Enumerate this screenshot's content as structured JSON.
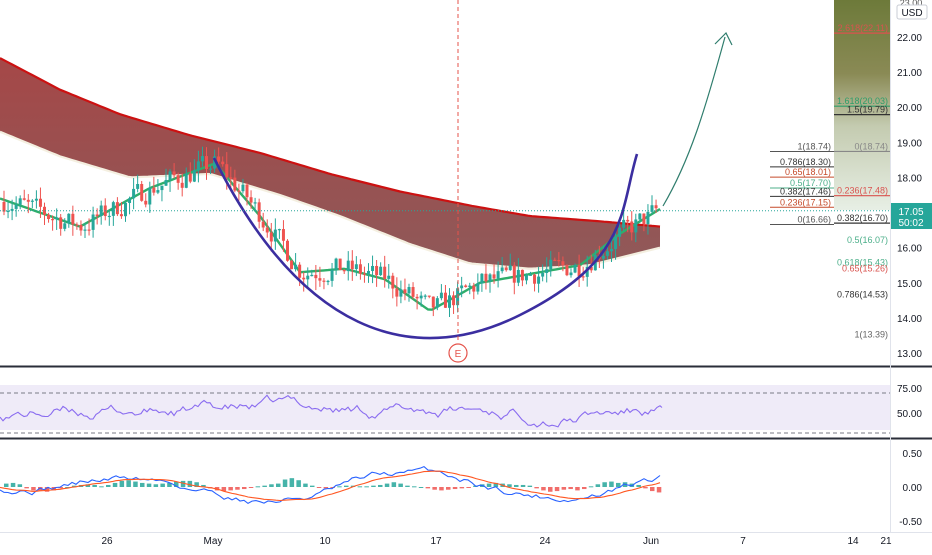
{
  "header": {
    "currency": "USD",
    "top_tick_partial": "23.00"
  },
  "price_label": {
    "value": "17.05",
    "countdown": "50:02"
  },
  "x_axis_labels": [
    "26",
    "May",
    "10",
    "17",
    "24",
    "Jun",
    "7",
    "14",
    "21"
  ],
  "event_marker": {
    "letter": "E"
  },
  "colors": {
    "up": "#26a69a",
    "down": "#ef5350",
    "ma_slow": "#cc1111",
    "ma_mid": "#f4efe0",
    "ma_fast": "#2fae6a",
    "cup": "#3b2ea0",
    "rsi": "#8a6cf0",
    "macd": "#2962ff",
    "signal": "#ff5722"
  },
  "chart_data": [
    {
      "type": "candlestick",
      "title": "",
      "ylabel": "USD",
      "ylim": [
        12.6,
        23.2
      ],
      "y_ticks": [
        "13.00",
        "14.00",
        "15.00",
        "16.00",
        "17.00",
        "18.00",
        "19.00",
        "20.00",
        "21.00",
        "22.00"
      ],
      "x_ticks": [
        "26",
        "May",
        "10",
        "17",
        "24",
        "Jun",
        "7",
        "14",
        "21"
      ],
      "last_price": 17.05,
      "moving_averages": [
        {
          "color": "red",
          "points": [
            [
              0,
              21.4
            ],
            [
              60,
              20.5
            ],
            [
              120,
              19.8
            ],
            [
              190,
              19.2
            ],
            [
              260,
              18.7
            ],
            [
              330,
              18.1
            ],
            [
              400,
              17.6
            ],
            [
              470,
              17.2
            ],
            [
              530,
              16.9
            ],
            [
              600,
              16.75
            ],
            [
              660,
              16.6
            ]
          ]
        },
        {
          "color": "cream",
          "points": [
            [
              0,
              19.3
            ],
            [
              60,
              18.6
            ],
            [
              130,
              18.0
            ],
            [
              210,
              18.1
            ],
            [
              280,
              17.5
            ],
            [
              340,
              16.9
            ],
            [
              410,
              16.1
            ],
            [
              470,
              15.55
            ],
            [
              530,
              15.4
            ],
            [
              590,
              15.5
            ],
            [
              660,
              16.0
            ]
          ]
        },
        {
          "color": "green",
          "points": [
            [
              0,
              17.4
            ],
            [
              80,
              16.6
            ],
            [
              150,
              17.7
            ],
            [
              215,
              18.4
            ],
            [
              260,
              16.9
            ],
            [
              300,
              15.3
            ],
            [
              345,
              15.4
            ],
            [
              385,
              15.1
            ],
            [
              430,
              14.2
            ],
            [
              480,
              15.0
            ],
            [
              540,
              15.3
            ],
            [
              580,
              15.5
            ],
            [
              620,
              16.4
            ],
            [
              660,
              17.1
            ]
          ]
        }
      ],
      "overlays": [
        {
          "kind": "cup-arc",
          "color": "dark-blue"
        },
        {
          "kind": "projection-arrow",
          "color": "teal"
        },
        {
          "kind": "vertical-event-line",
          "color": "red",
          "dashed": true
        }
      ],
      "fib_left": {
        "labels": [
          "1(18.74)",
          "0.786(18.30)",
          "0.65(18.01)",
          "0.5(17.70)",
          "0.382(17.46)",
          "0.236(17.15)",
          "0(16.66)"
        ],
        "values": [
          18.74,
          18.3,
          18.01,
          17.7,
          17.46,
          17.15,
          16.66
        ],
        "colors": [
          "#555555",
          "#333333",
          "#c54a2a",
          "#4caf8a",
          "#333333",
          "#c54a2a",
          "#555555"
        ]
      },
      "fib_right": {
        "labels": [
          "2.618(22.11)",
          "1.618(20.03)",
          "1.5(19.79)",
          "0(18.74)",
          "0.236(17.48)",
          "0.382(16.70)",
          "0.5(16.07)",
          "0.618(15.43)",
          "0.65(15.26)",
          "0.786(14.53)",
          "1(13.39)"
        ],
        "values": [
          22.11,
          20.03,
          19.79,
          18.74,
          17.48,
          16.7,
          16.07,
          15.43,
          15.26,
          14.53,
          13.39
        ],
        "colors": [
          "#d9534f",
          "#2e9e6a",
          "#333333",
          "#888888",
          "#d9534f",
          "#333333",
          "#4caf8a",
          "#4caf8a",
          "#d9534f",
          "#333333",
          "#666666"
        ]
      }
    },
    {
      "type": "line",
      "ylim": [
        25,
        95
      ],
      "y_ticks": [
        "75.00",
        "50.00"
      ],
      "reference_lines": [
        70,
        30
      ],
      "last_value": 55.5
    },
    {
      "type": "bar",
      "ylim": [
        -0.62,
        0.62
      ],
      "y_ticks": [
        "0.50",
        "0.00",
        "-0.50"
      ],
      "series": [
        {
          "name": "",
          "values": [
            0.05,
            0.06,
            0.04,
            -0.02,
            -0.05,
            -0.05,
            -0.07,
            -0.05,
            -0.02,
            0.0,
            0.02,
            0.03,
            0.04,
            0.03,
            0.01,
            0.03,
            0.06,
            0.09,
            0.1,
            0.08,
            0.06,
            0.05,
            0.04,
            0.05,
            0.06,
            0.08,
            0.09,
            0.09,
            0.07,
            0.03,
            -0.02,
            -0.05,
            -0.06,
            -0.05,
            -0.04,
            -0.03,
            -0.01,
            0.01,
            0.02,
            0.04,
            0.05,
            0.11,
            0.13,
            0.1,
            0.05,
            0.02,
            -0.01,
            -0.02,
            -0.01,
            0.01,
            0.02,
            0.02,
            0.01,
            0.01,
            0.02,
            0.03,
            0.05,
            0.07,
            0.05,
            0.02,
            0.01,
            0.0,
            -0.02,
            -0.04,
            -0.05,
            -0.04,
            -0.03,
            -0.02,
            -0.01,
            0.02,
            0.04,
            0.05,
            0.06,
            0.05,
            0.04,
            0.03,
            0.03,
            0.02,
            -0.02,
            -0.05,
            -0.07,
            -0.06,
            -0.04,
            -0.03,
            -0.05,
            -0.03,
            0.01,
            0.04,
            0.07,
            0.08,
            0.06,
            0.07,
            0.05,
            0.03,
            -0.02,
            -0.06,
            -0.08
          ]
        }
      ]
    }
  ]
}
